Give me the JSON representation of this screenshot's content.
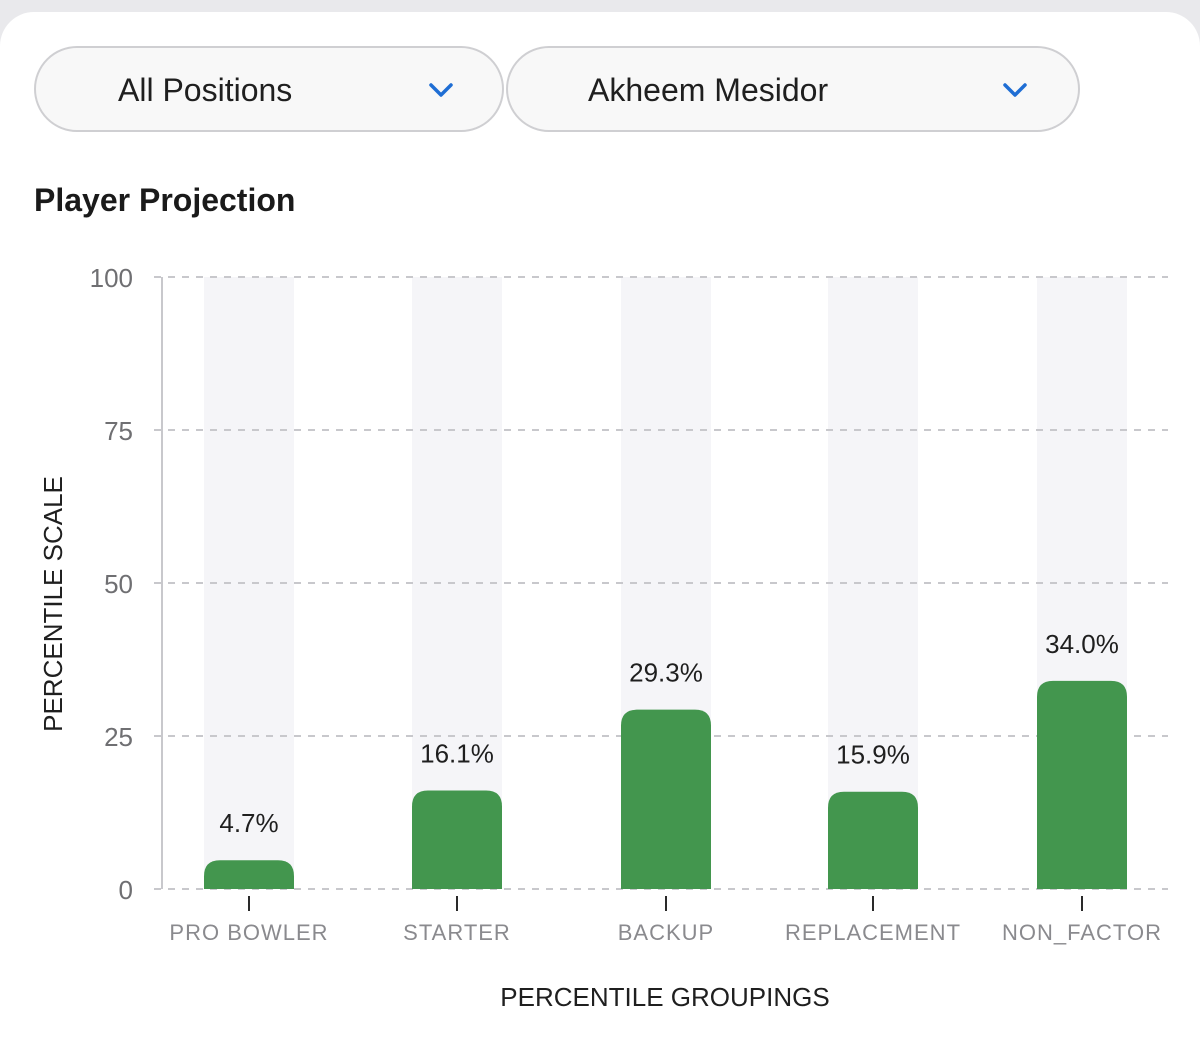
{
  "filters": {
    "position": "All Positions",
    "player": "Akheem Mesidor"
  },
  "section_title": "Player Projection",
  "colors": {
    "bar": "#43964e",
    "track": "#f5f5f8",
    "grid": "#c8c8cc",
    "accent": "#1f6ed4"
  },
  "chart_data": {
    "type": "bar",
    "title": "Player Projection",
    "categories": [
      "PRO BOWLER",
      "STARTER",
      "BACKUP",
      "REPLACEMENT",
      "NON_FACTOR"
    ],
    "values": [
      4.7,
      16.1,
      29.3,
      15.9,
      34.0
    ],
    "value_labels": [
      "4.7%",
      "16.1%",
      "29.3%",
      "15.9%",
      "34.0%"
    ],
    "xlabel": "PERCENTILE GROUPINGS",
    "ylabel": "PERCENTILE SCALE",
    "ylim": [
      0,
      100
    ],
    "yticks": [
      0,
      25,
      50,
      75,
      100
    ],
    "grid": true
  }
}
